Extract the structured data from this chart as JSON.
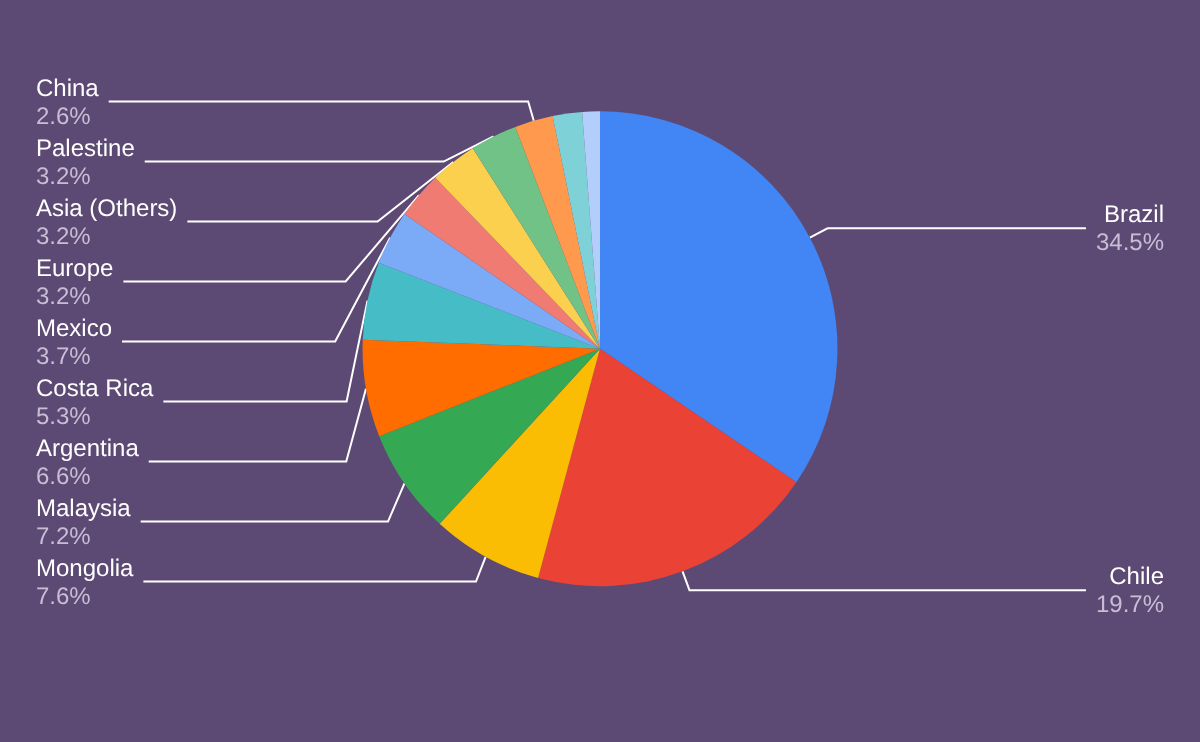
{
  "chart_data": {
    "type": "pie",
    "categories": [
      "Brazil",
      "Chile",
      "Mongolia",
      "Malaysia",
      "Argentina",
      "Costa Rica",
      "Mexico",
      "Europe",
      "Asia (Others)",
      "Palestine",
      "China",
      null,
      null
    ],
    "values": [
      34.5,
      19.7,
      7.6,
      7.2,
      6.6,
      5.3,
      3.7,
      3.2,
      3.2,
      3.2,
      2.6,
      2.0,
      1.2
    ],
    "value_labels": [
      "34.5%",
      "19.7%",
      "7.6%",
      "7.2%",
      "6.6%",
      "5.3%",
      "3.7%",
      "3.2%",
      "3.2%",
      "3.2%",
      "2.6%",
      null,
      null
    ],
    "colors": [
      "#4285f4",
      "#ea4335",
      "#fbbc04",
      "#34a853",
      "#ff6d01",
      "#46bdc6",
      "#7baaf7",
      "#f07b72",
      "#fcd04f",
      "#71c287",
      "#ff994d",
      "#7ed1d7",
      "#b3cefb"
    ],
    "legend": false
  }
}
